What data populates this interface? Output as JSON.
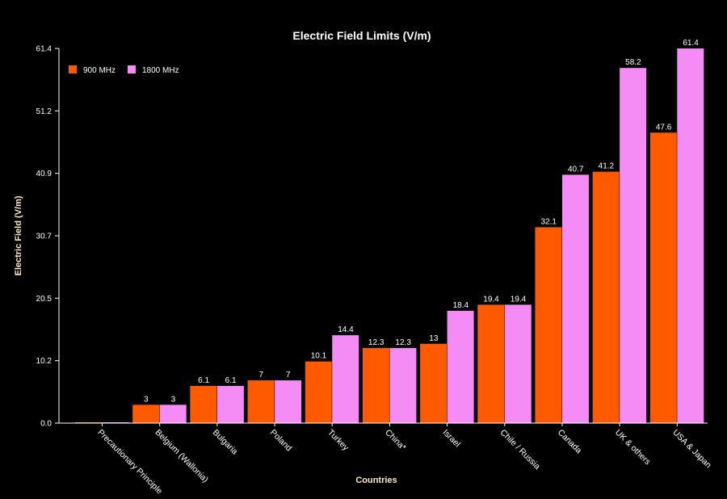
{
  "chart_data": {
    "type": "bar",
    "title": "Electric Field Limits (V/m)",
    "xlabel": "Countries",
    "ylabel": "Electric Field (V/m)",
    "ylim": [
      0,
      61.4
    ],
    "yticks": [
      "0.0",
      "10.2",
      "20.5",
      "30.7",
      "40.9",
      "51.2",
      "61.4"
    ],
    "ytick_values": [
      0,
      10.23,
      20.47,
      30.7,
      40.93,
      51.17,
      61.4
    ],
    "categories": [
      "Precautionary Principle",
      "Belgium (Wallonia)",
      "Bulgaria",
      "Poland",
      "Turkey",
      "China*",
      "Israel",
      "Chile / Russia",
      "Canada",
      "UK & others",
      "USA & Japan"
    ],
    "series": [
      {
        "name": "900 MHz",
        "color": "#ff5a00",
        "values": [
          0,
          3,
          6.1,
          7,
          10.1,
          12.3,
          13,
          19.4,
          32.1,
          41.2,
          47.6
        ],
        "labels": [
          "",
          "3",
          "6.1",
          "7",
          "10.1",
          "12.3",
          "13",
          "19.4",
          "32.1",
          "41.2",
          "47.6"
        ]
      },
      {
        "name": "1800 MHz",
        "color": "#f58cf5",
        "values": [
          0,
          3,
          6.1,
          7,
          14.4,
          12.3,
          18.4,
          19.4,
          40.7,
          58.2,
          61.4
        ],
        "labels": [
          "",
          "3",
          "6.1",
          "7",
          "14.4",
          "12.3",
          "18.4",
          "19.4",
          "40.7",
          "58.2",
          "61.4"
        ]
      }
    ],
    "legend_position": "top-left",
    "grid": false,
    "background": "#000000"
  }
}
